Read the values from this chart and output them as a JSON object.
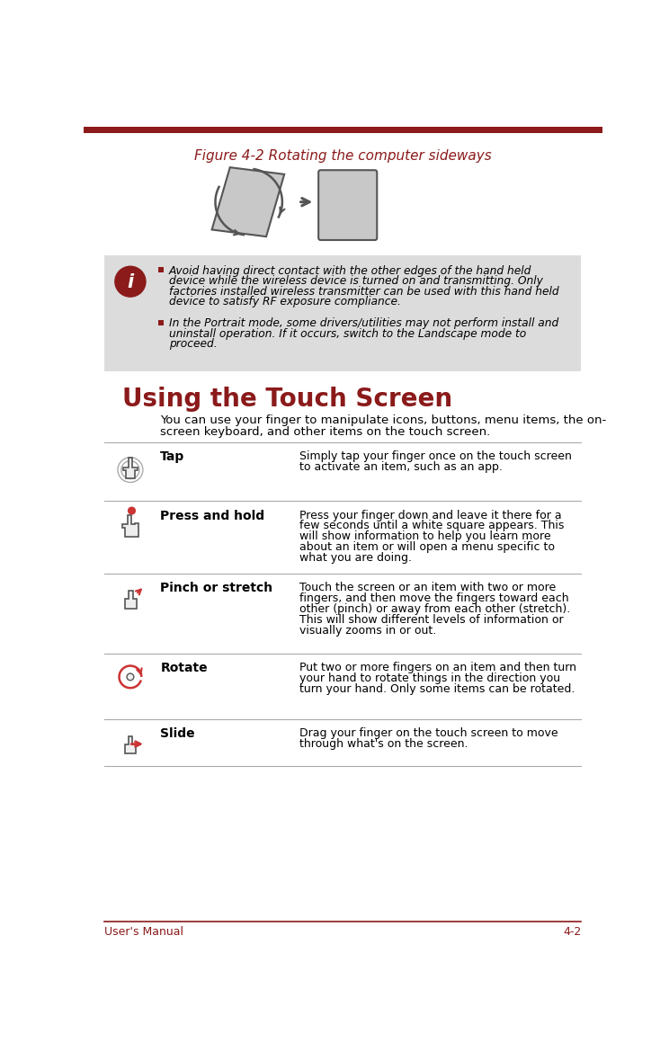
{
  "top_bar_color": "#8B1A1A",
  "title_text": "Figure 4-2 Rotating the computer sideways",
  "title_color": "#8B1A1A",
  "title_fontsize": 11,
  "section_heading": "Using the Touch Screen",
  "section_heading_color": "#8B1A1A",
  "section_heading_fontsize": 20,
  "info_box_bg": "#DCDCDC",
  "info_box_bullet_color": "#8B1A1A",
  "bullet1_lines": [
    "Avoid having direct contact with the other edges of the hand held",
    "device while the wireless device is turned on and transmitting. Only",
    "factories installed wireless transmitter can be used with this hand held",
    "device to satisfy RF exposure compliance."
  ],
  "bullet2_lines": [
    "In the Portrait mode, some drivers/utilities may not perform install and",
    "uninstall operation. If it occurs, switch to the Landscape mode to",
    "proceed."
  ],
  "intro_lines": [
    "You can use your finger to manipulate icons, buttons, menu items, the on-",
    "screen keyboard, and other items on the touch screen."
  ],
  "touch_actions": [
    {
      "name": "Tap"
    },
    {
      "name": "Press and hold"
    },
    {
      "name": "Pinch or stretch"
    },
    {
      "name": "Rotate"
    },
    {
      "name": "Slide"
    }
  ],
  "action_desc_lines": [
    [
      "Simply tap your finger once on the touch screen",
      "to activate an item, such as an app."
    ],
    [
      "Press your finger down and leave it there for a",
      "few seconds until a white square appears. This",
      "will show information to help you learn more",
      "about an item or will open a menu specific to",
      "what you are doing."
    ],
    [
      "Touch the screen or an item with two or more",
      "fingers, and then move the fingers toward each",
      "other (pinch) or away from each other (stretch).",
      "This will show different levels of information or",
      "visually zooms in or out."
    ],
    [
      "Put two or more fingers on an item and then turn",
      "your hand to rotate things in the direction you",
      "turn your hand. Only some items can be rotated."
    ],
    [
      "Drag your finger on the touch screen to move",
      "through what's on the screen."
    ]
  ],
  "row_starts": [
    455,
    540,
    645,
    760,
    855
  ],
  "footer_text_left": "User's Manual",
  "footer_text_right": "4-2",
  "footer_color": "#8B1A1A",
  "divider_color": "#8B1A1A",
  "gray_divider_color": "#AAAAAA",
  "icon_color": "#CC3333",
  "hand_face_color": "#EEEEEE",
  "hand_edge_color": "#555555"
}
